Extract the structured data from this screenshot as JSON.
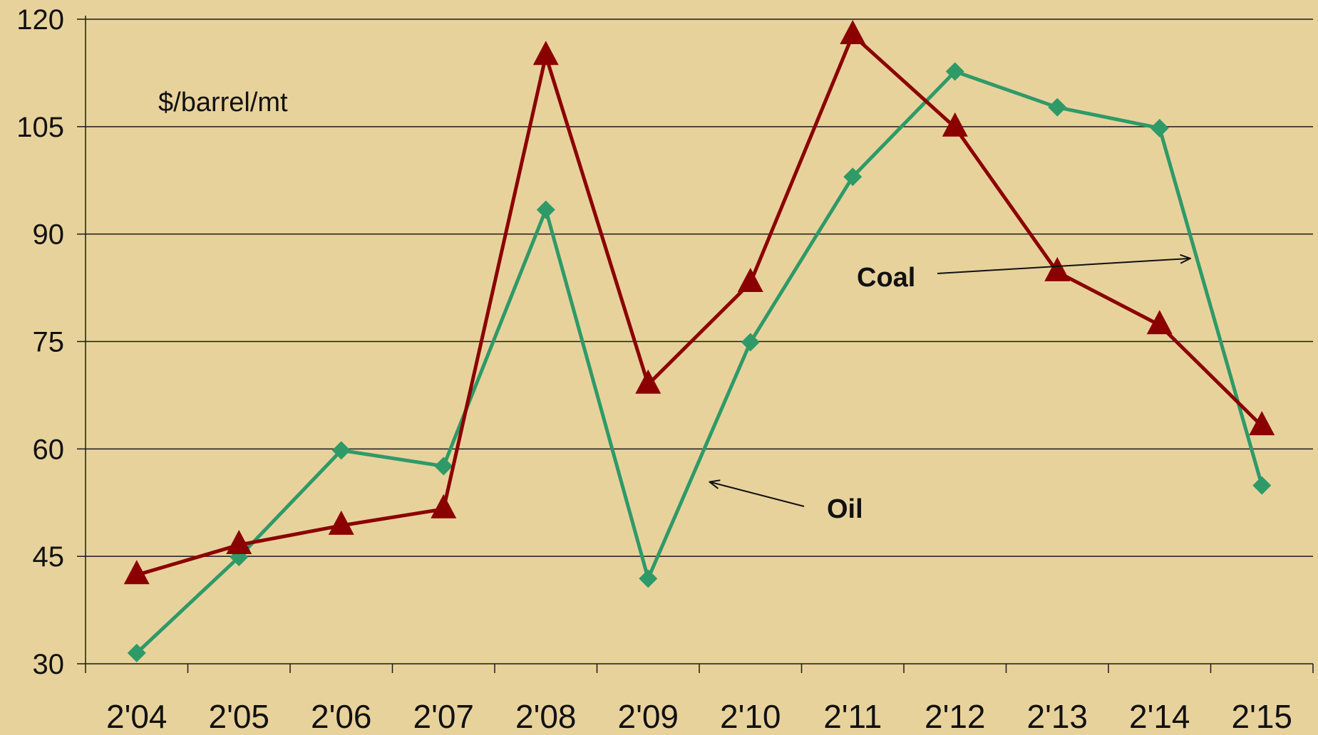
{
  "chart_data": {
    "type": "line",
    "title": "",
    "xlabel": "",
    "ylabel": "",
    "unit_label": "$/barrel/mt",
    "categories": [
      "2'04",
      "2'05",
      "2'06",
      "2'07",
      "2'08",
      "2'09",
      "2'10",
      "2'11",
      "2'12",
      "2'13",
      "2'14",
      "2'15"
    ],
    "ylim": [
      30,
      120
    ],
    "yticks": [
      30,
      45,
      60,
      75,
      90,
      105,
      120
    ],
    "grid": true,
    "legend": "none",
    "series": [
      {
        "name": "Oil",
        "color": "#2E9A68",
        "marker": "diamond",
        "values": [
          31.5,
          44.9,
          59.8,
          57.6,
          93.4,
          41.9,
          74.9,
          98.0,
          112.7,
          107.7,
          104.8,
          54.9
        ]
      },
      {
        "name": "Coal",
        "color": "#8B0000",
        "marker": "triangle",
        "values": [
          42.4,
          46.6,
          49.3,
          51.6,
          114.9,
          69.0,
          83.2,
          117.8,
          104.9,
          84.7,
          77.3,
          63.2
        ]
      }
    ],
    "annotations": [
      {
        "text": "Coal",
        "series": "Coal",
        "arrow_to_index": 10.3,
        "arrow_to_value": 86.6
      },
      {
        "text": "Oil",
        "series": "Oil",
        "arrow_to_index": 5.6,
        "arrow_to_value": 55.4
      }
    ]
  }
}
